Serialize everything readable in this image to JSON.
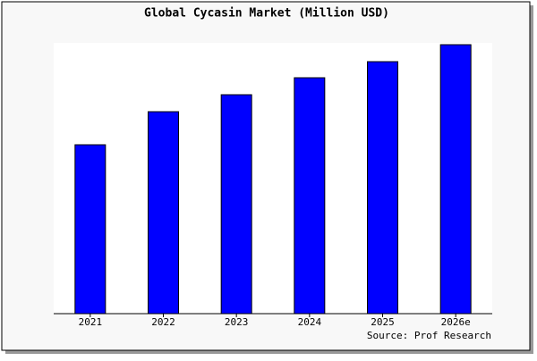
{
  "chart_data": {
    "type": "bar",
    "title": "Global Cycasin Market (Million USD)",
    "categories": [
      "2021",
      "2022",
      "2023",
      "2024",
      "2025",
      "2026e"
    ],
    "values": [
      18.9,
      22.6,
      24.5,
      26.4,
      28.2,
      30.1
    ],
    "color": "#0000ff",
    "source": "Source: Prof Research"
  }
}
